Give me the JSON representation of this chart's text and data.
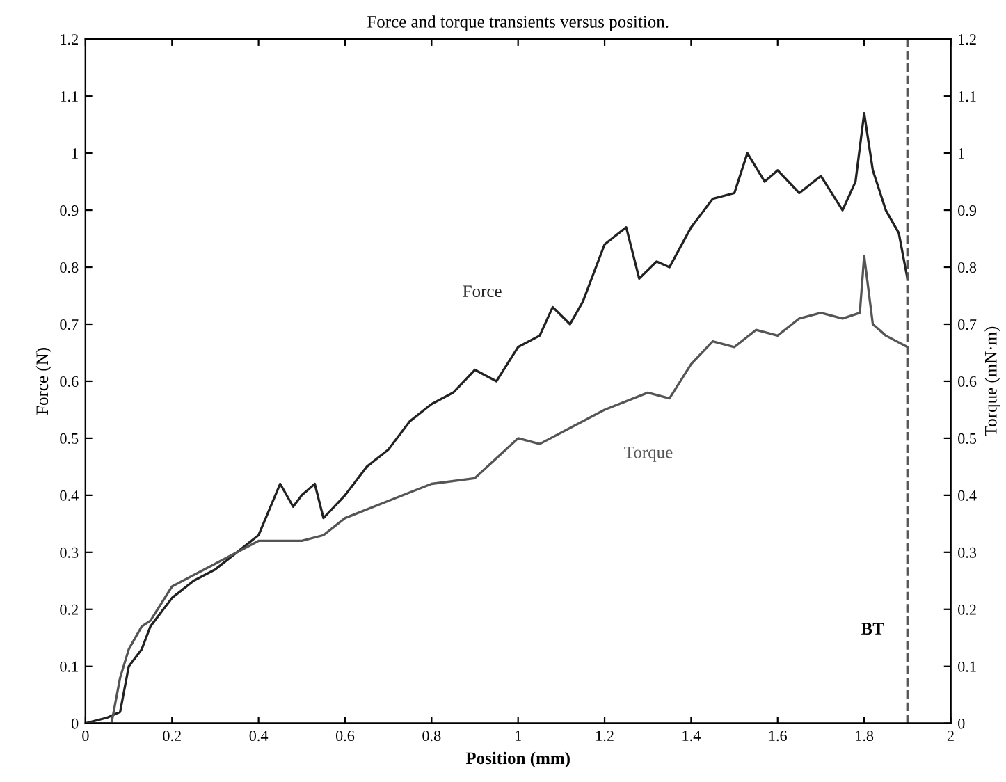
{
  "chart_data": {
    "type": "line",
    "title": "Force and torque transients versus position.",
    "xlabel": "Position (mm)",
    "ylabel": "Force (N)",
    "y2label": "Torque (mN·m)",
    "xlim": [
      0,
      2
    ],
    "xticks": [
      0,
      0.2,
      0.4,
      0.6,
      0.8,
      1,
      1.2,
      1.4,
      1.6,
      1.8,
      2
    ],
    "ylim": [
      0,
      1.2
    ],
    "yticks": [
      0,
      0.1,
      0.2,
      0.3,
      0.4,
      0.5,
      0.6,
      0.7,
      0.8,
      0.9,
      1,
      1.1,
      1.2
    ],
    "y2lim": [
      0,
      1.2
    ],
    "y2ticks": [
      0,
      0.1,
      0.2,
      0.3,
      0.4,
      0.5,
      0.6,
      0.7,
      0.8,
      0.9,
      1,
      1.1,
      1.2
    ],
    "grid": false,
    "marker": "none",
    "line_style": "solid",
    "series": [
      {
        "name": "Force",
        "color": "#222222",
        "x": [
          0,
          0.05,
          0.08,
          0.1,
          0.13,
          0.15,
          0.18,
          0.2,
          0.25,
          0.3,
          0.35,
          0.4,
          0.45,
          0.48,
          0.5,
          0.53,
          0.55,
          0.6,
          0.65,
          0.7,
          0.75,
          0.8,
          0.85,
          0.9,
          0.95,
          1.0,
          1.05,
          1.08,
          1.12,
          1.15,
          1.2,
          1.25,
          1.28,
          1.32,
          1.35,
          1.4,
          1.45,
          1.5,
          1.53,
          1.57,
          1.6,
          1.65,
          1.7,
          1.75,
          1.78,
          1.8,
          1.82,
          1.85,
          1.88,
          1.9
        ],
        "values": [
          0,
          0.01,
          0.02,
          0.1,
          0.13,
          0.17,
          0.2,
          0.22,
          0.25,
          0.27,
          0.3,
          0.33,
          0.42,
          0.38,
          0.4,
          0.42,
          0.36,
          0.4,
          0.45,
          0.48,
          0.53,
          0.56,
          0.58,
          0.62,
          0.6,
          0.66,
          0.68,
          0.73,
          0.7,
          0.74,
          0.84,
          0.87,
          0.78,
          0.81,
          0.8,
          0.87,
          0.92,
          0.93,
          1.0,
          0.95,
          0.97,
          0.93,
          0.96,
          0.9,
          0.95,
          1.07,
          0.97,
          0.9,
          0.86,
          0.78
        ]
      },
      {
        "name": "Torque",
        "color": "#555555",
        "axis": "y2",
        "x": [
          0,
          0.06,
          0.08,
          0.1,
          0.13,
          0.15,
          0.2,
          0.3,
          0.4,
          0.5,
          0.55,
          0.6,
          0.7,
          0.8,
          0.9,
          1.0,
          1.05,
          1.1,
          1.2,
          1.3,
          1.35,
          1.4,
          1.45,
          1.5,
          1.55,
          1.6,
          1.65,
          1.7,
          1.75,
          1.79,
          1.8,
          1.82,
          1.85,
          1.9
        ],
        "values": [
          0,
          0,
          0.08,
          0.13,
          0.17,
          0.18,
          0.24,
          0.28,
          0.32,
          0.32,
          0.33,
          0.36,
          0.39,
          0.42,
          0.43,
          0.5,
          0.49,
          0.51,
          0.55,
          0.58,
          0.57,
          0.63,
          0.67,
          0.66,
          0.69,
          0.68,
          0.71,
          0.72,
          0.71,
          0.72,
          0.82,
          0.7,
          0.68,
          0.66
        ]
      }
    ],
    "ref_lines": [
      {
        "axis": "x",
        "value": 1.9,
        "label": "BT",
        "color": "#555555",
        "line_style": "dashed"
      }
    ]
  }
}
